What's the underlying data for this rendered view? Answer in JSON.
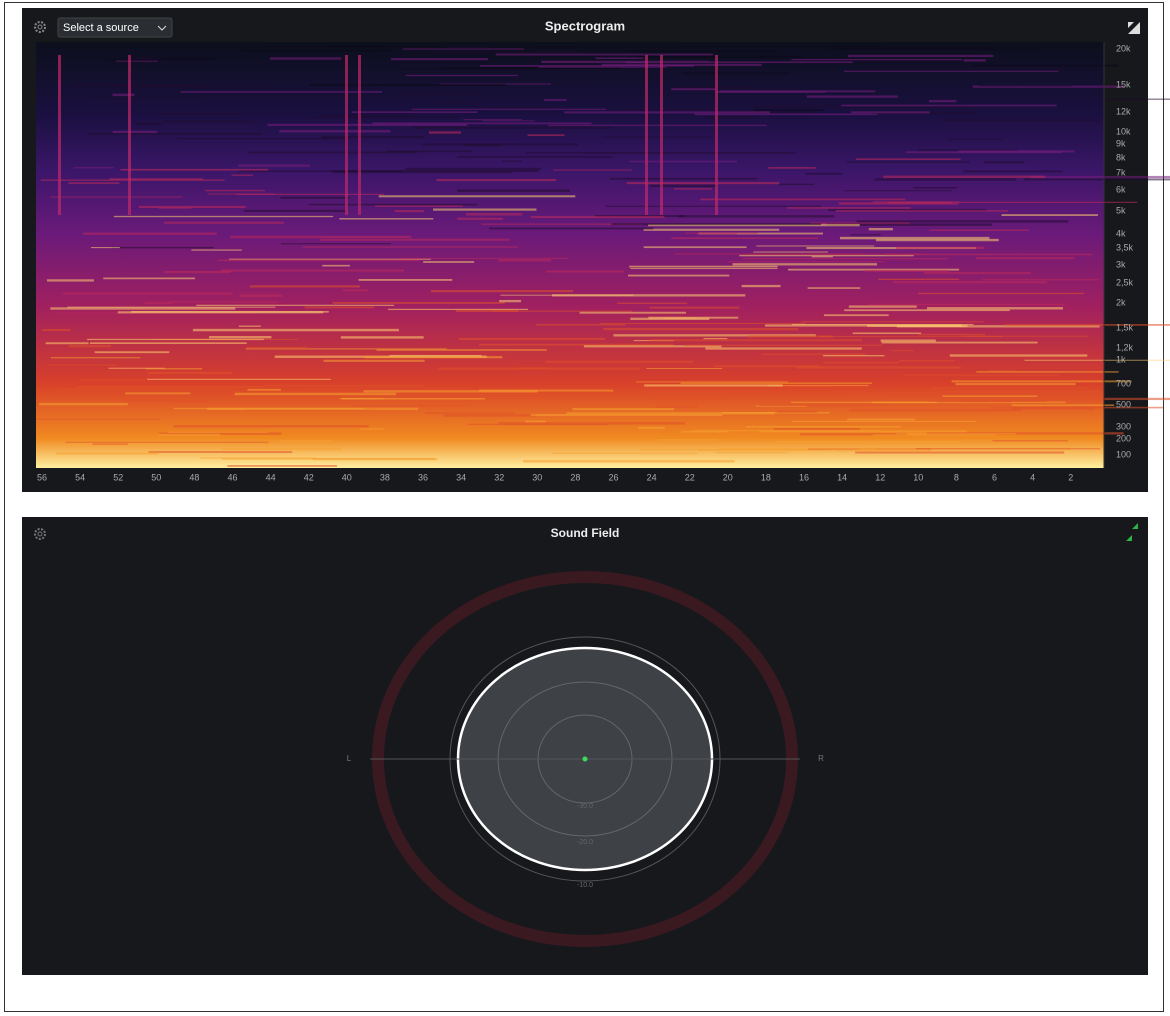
{
  "spectrogram": {
    "title": "Spectrogram",
    "source_select": "Select a source",
    "frequency_labels": [
      "20k",
      "15k",
      "12k",
      "10k",
      "9k",
      "8k",
      "7k",
      "6k",
      "5k",
      "4k",
      "3,5k",
      "3k",
      "2,5k",
      "2k",
      "1,5k",
      "1,2k",
      "1k",
      "700",
      "500",
      "300",
      "200",
      "100"
    ],
    "time_labels": [
      "56",
      "54",
      "52",
      "50",
      "48",
      "46",
      "44",
      "42",
      "40",
      "38",
      "36",
      "34",
      "32",
      "30",
      "28",
      "26",
      "24",
      "22",
      "20",
      "18",
      "16",
      "14",
      "12",
      "10",
      "8",
      "6",
      "4",
      "2"
    ]
  },
  "sound_field": {
    "title": "Sound Field",
    "left_label": "L",
    "right_label": "R",
    "ring_labels": [
      "-30.0",
      "-20.0",
      "-10.0"
    ]
  }
}
